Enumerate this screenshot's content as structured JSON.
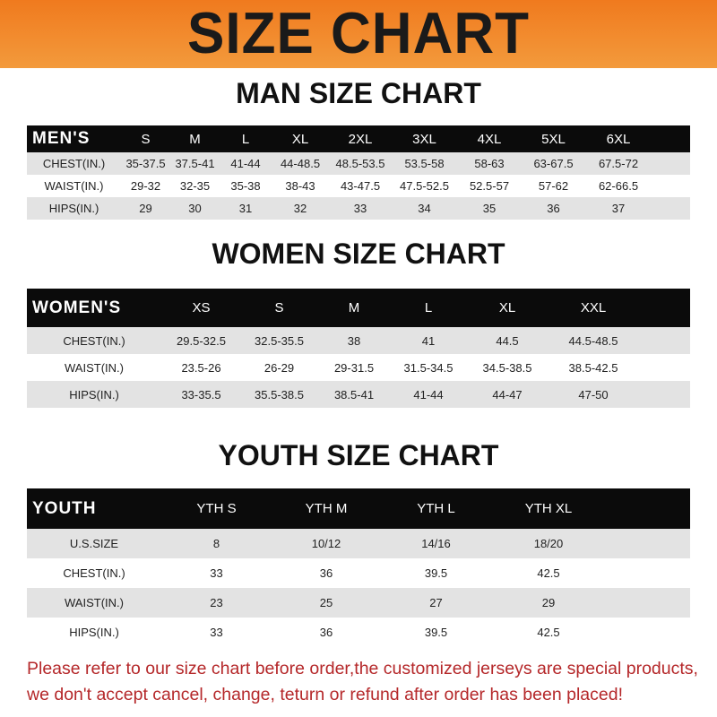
{
  "banner": {
    "title": "SIZE CHART"
  },
  "note": {
    "line1": "Please refer to our size chart before order,the customized jerseys are special products,",
    "line2": "we don't accept cancel, change, teturn or refund after order has been placed!"
  },
  "colors": {
    "banner": "#f07a1e",
    "header_row": "#0b0b0b",
    "stripe": "#e3e3e3",
    "note": "#b5282a"
  },
  "tables": [
    {
      "title": "MAN SIZE CHART",
      "header": [
        "MEN'S",
        "S",
        "M",
        "L",
        "XL",
        "2XL",
        "3XL",
        "4XL",
        "5XL",
        "6XL"
      ],
      "rows": [
        [
          "CHEST(IN.)",
          "35-37.5",
          "37.5-41",
          "41-44",
          "44-48.5",
          "48.5-53.5",
          "53.5-58",
          "58-63",
          "63-67.5",
          "67.5-72"
        ],
        [
          "WAIST(IN.)",
          "29-32",
          "32-35",
          "35-38",
          "38-43",
          "43-47.5",
          "47.5-52.5",
          "52.5-57",
          "57-62",
          "62-66.5"
        ],
        [
          "HIPS(IN.)",
          "29",
          "30",
          "31",
          "32",
          "33",
          "34",
          "35",
          "36",
          "37"
        ]
      ]
    },
    {
      "title": "WOMEN SIZE CHART",
      "header": [
        "WOMEN'S",
        "XS",
        "S",
        "M",
        "L",
        "XL",
        "XXL"
      ],
      "rows": [
        [
          "CHEST(IN.)",
          "29.5-32.5",
          "32.5-35.5",
          "38",
          "41",
          "44.5",
          "44.5-48.5"
        ],
        [
          "WAIST(IN.)",
          "23.5-26",
          "26-29",
          "29-31.5",
          "31.5-34.5",
          "34.5-38.5",
          "38.5-42.5"
        ],
        [
          "HIPS(IN.)",
          "33-35.5",
          "35.5-38.5",
          "38.5-41",
          "41-44",
          "44-47",
          "47-50"
        ]
      ]
    },
    {
      "title": "YOUTH SIZE CHART",
      "header": [
        "YOUTH",
        "YTH S",
        "YTH M",
        "YTH L",
        "YTH XL"
      ],
      "rows": [
        [
          "U.S.SIZE",
          "8",
          "10/12",
          "14/16",
          "18/20"
        ],
        [
          "CHEST(IN.)",
          "33",
          "36",
          "39.5",
          "42.5"
        ],
        [
          "WAIST(IN.)",
          "23",
          "25",
          "27",
          "29"
        ],
        [
          "HIPS(IN.)",
          "33",
          "36",
          "39.5",
          "42.5"
        ]
      ]
    }
  ]
}
